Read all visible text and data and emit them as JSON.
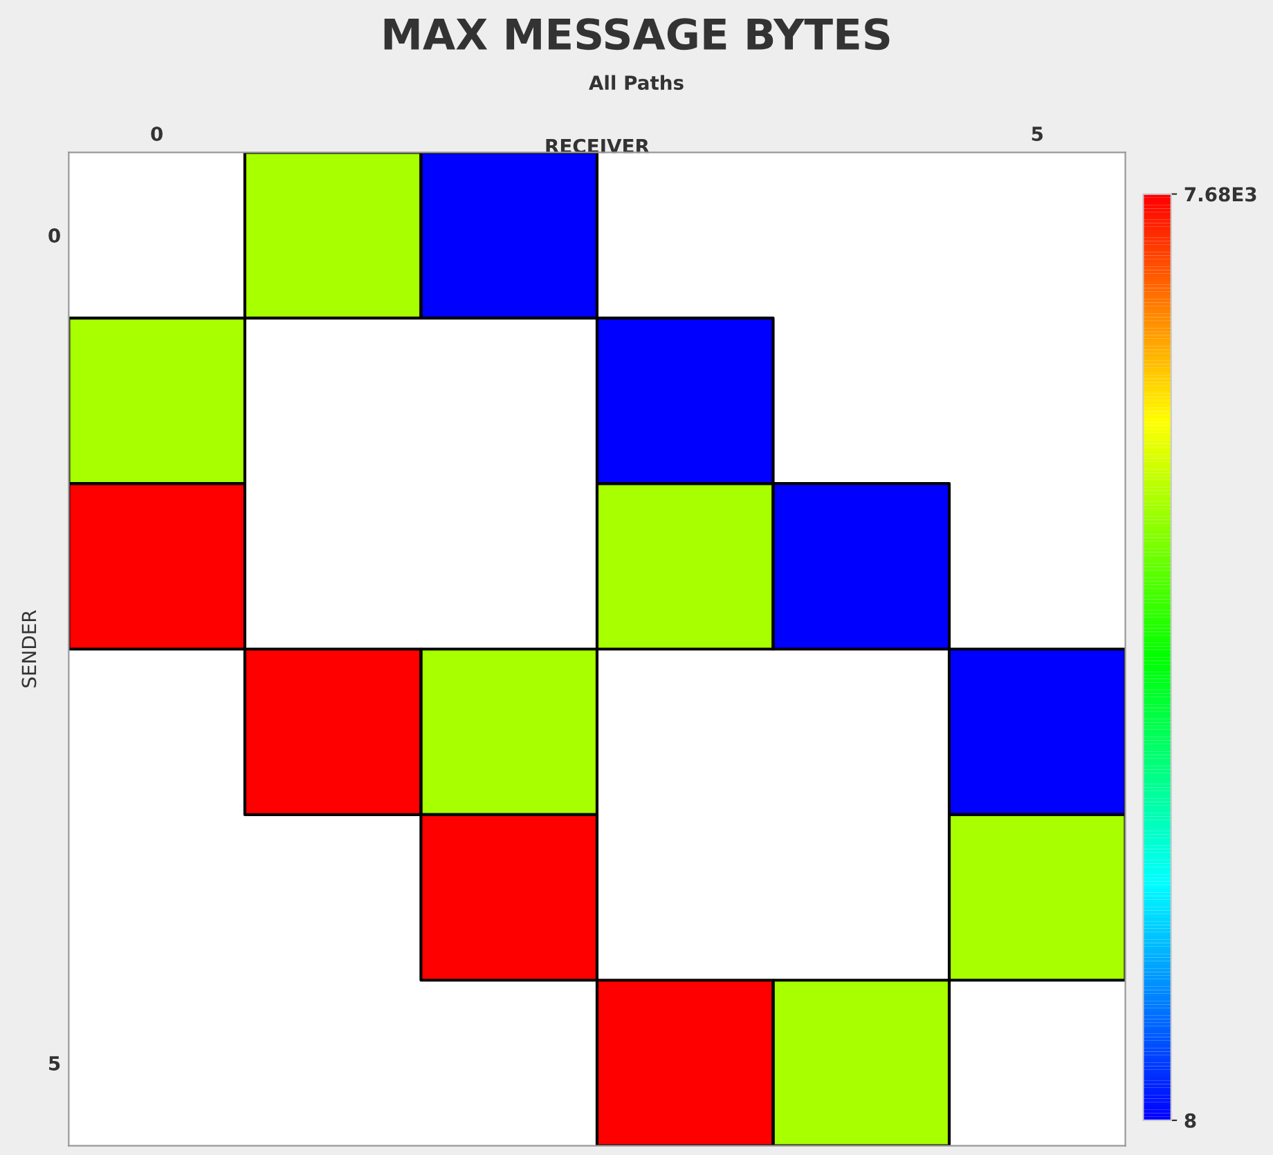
{
  "chart_data": {
    "type": "heatmap",
    "title": "MAX MESSAGE BYTES",
    "subtitle": "All Paths",
    "xlabel": "RECEIVER",
    "ylabel": "SENDER",
    "categories": [
      "0",
      null,
      null,
      null,
      null,
      "5"
    ],
    "y_categories": [
      "0",
      null,
      null,
      null,
      null,
      "5"
    ],
    "cells": [
      [
        null,
        5120,
        8,
        null,
        null,
        null
      ],
      [
        5120,
        null,
        null,
        8,
        null,
        null
      ],
      [
        7680,
        null,
        null,
        5120,
        8,
        null
      ],
      [
        null,
        7680,
        5120,
        null,
        null,
        8
      ],
      [
        null,
        null,
        7680,
        null,
        null,
        5120
      ],
      [
        null,
        null,
        null,
        7680,
        5120,
        null
      ]
    ],
    "clim": [
      8,
      7680
    ],
    "cticks": [
      {
        "value": 8,
        "label": "8"
      },
      {
        "value": 7680,
        "label": "7.68E3"
      }
    ]
  }
}
